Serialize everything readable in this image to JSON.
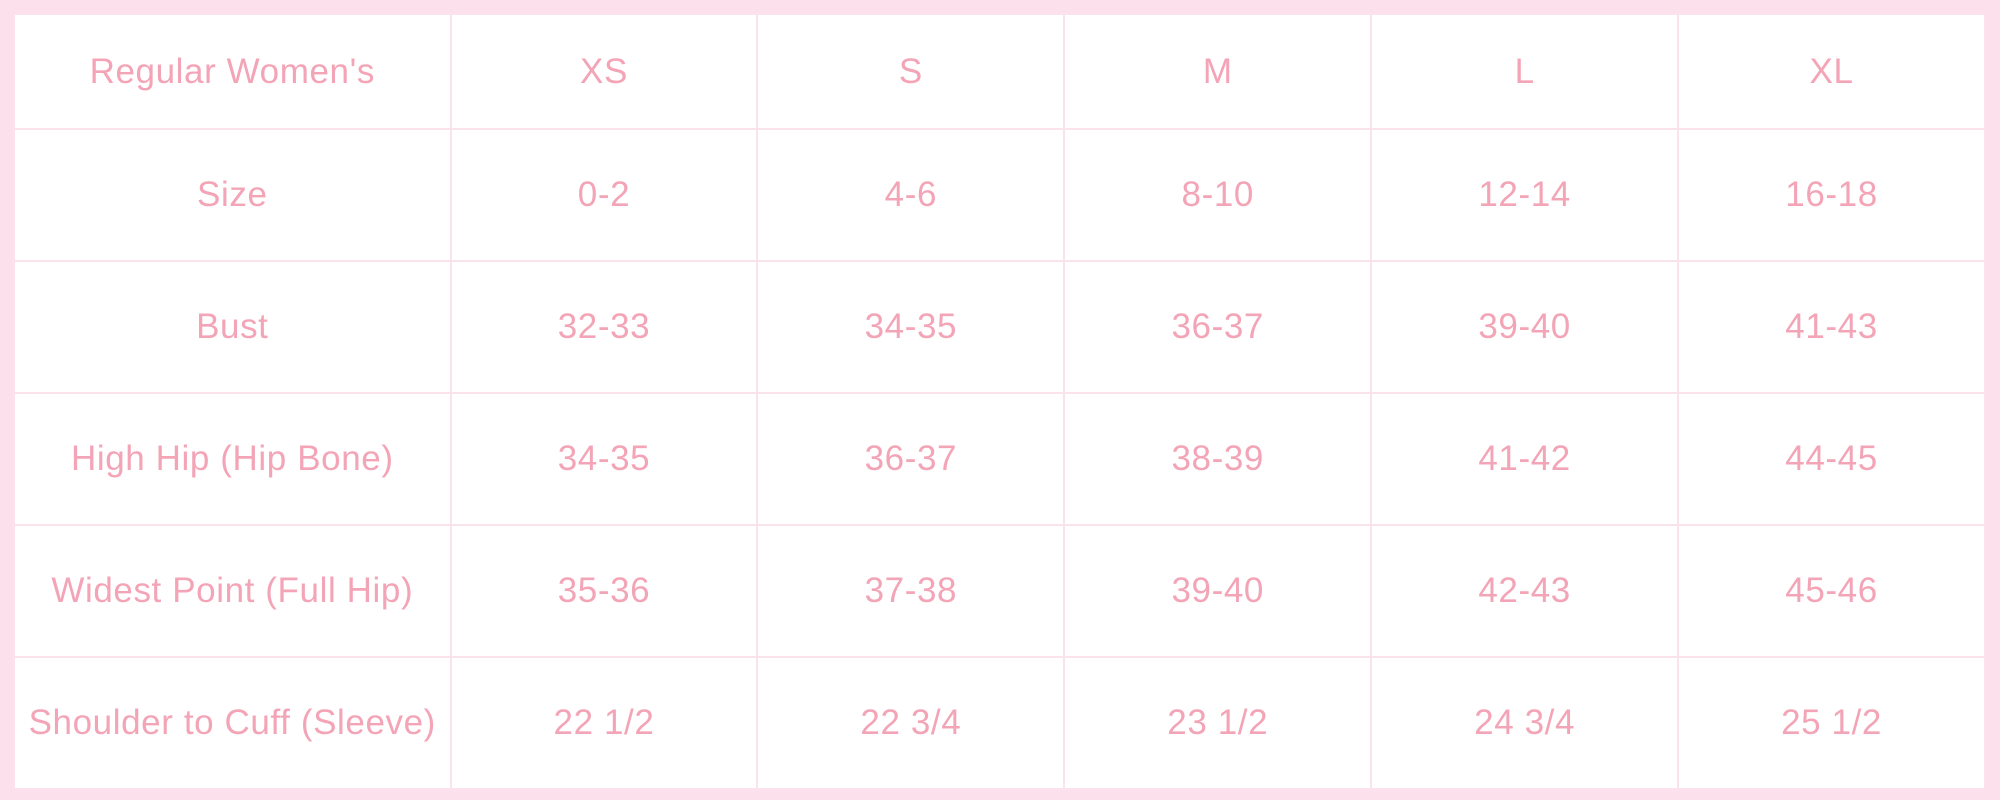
{
  "theme": {
    "frame_color": "#fce1ec",
    "cell_bg": "#ffffff",
    "border_color": "#fbe3ed",
    "text_color": "#f3a4b6"
  },
  "chart_data": {
    "type": "table",
    "columns": [
      "Regular Women's",
      "XS",
      "S",
      "M",
      "L",
      "XL"
    ],
    "rows": [
      [
        "Size",
        "0-2",
        "4-6",
        "8-10",
        "12-14",
        "16-18"
      ],
      [
        "Bust",
        "32-33",
        "34-35",
        "36-37",
        "39-40",
        "41-43"
      ],
      [
        "High Hip (Hip Bone)",
        "34-35",
        "36-37",
        "38-39",
        "41-42",
        "44-45"
      ],
      [
        "Widest Point (Full Hip)",
        "35-36",
        "37-38",
        "39-40",
        "42-43",
        "45-46"
      ],
      [
        "Shoulder to Cuff (Sleeve)",
        "22 1/2",
        "22 3/4",
        "23 1/2",
        "24 3/4",
        "25 1/2"
      ]
    ]
  }
}
